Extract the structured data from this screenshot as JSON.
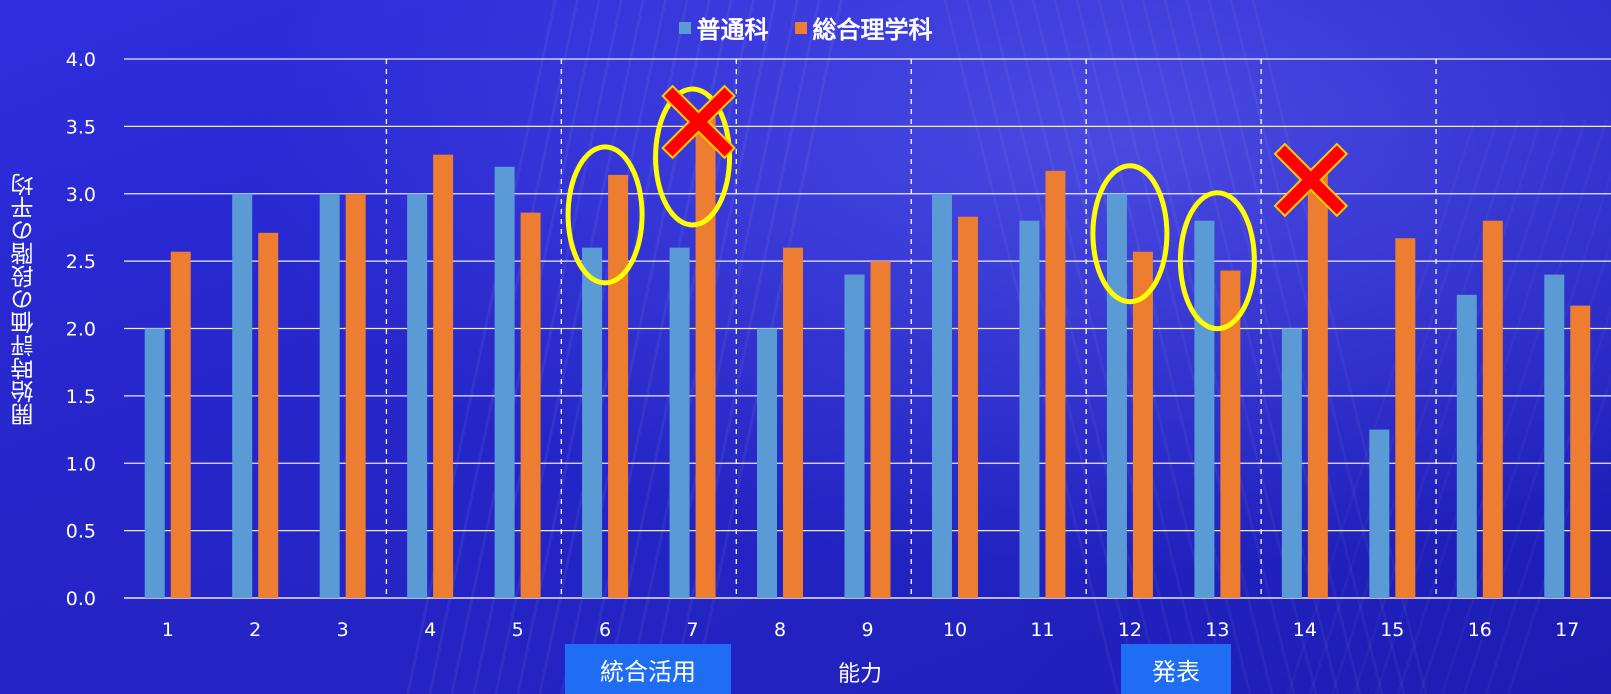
{
  "chart_data": {
    "type": "bar",
    "title": "",
    "ylabel": "開始時評価の段階の平均",
    "xlabel": "能力",
    "ylim": [
      0,
      4
    ],
    "yticks": [
      "0.0",
      "0.5",
      "1.0",
      "1.5",
      "2.0",
      "2.5",
      "3.0",
      "3.5",
      "4.0"
    ],
    "categories": [
      "1",
      "2",
      "3",
      "4",
      "5",
      "6",
      "7",
      "8",
      "9",
      "10",
      "11",
      "12",
      "13",
      "14",
      "15",
      "16",
      "17"
    ],
    "series": [
      {
        "name": "普通科",
        "color": "#5b9bd5",
        "values": [
          2.0,
          3.0,
          3.0,
          3.0,
          3.2,
          2.6,
          2.6,
          2.0,
          2.4,
          3.0,
          2.8,
          3.0,
          2.8,
          2.0,
          1.25,
          2.25,
          2.4
        ]
      },
      {
        "name": "総合理学科",
        "color": "#ed7d31",
        "values": [
          2.57,
          2.71,
          3.0,
          3.29,
          2.86,
          3.14,
          3.57,
          2.6,
          2.5,
          2.83,
          3.17,
          2.57,
          2.43,
          3.14,
          2.67,
          2.8,
          2.17
        ]
      }
    ],
    "grid": true,
    "legend": "top-center",
    "group_separators_after": [
      3,
      5,
      7,
      9,
      11,
      13,
      15
    ],
    "tags": [
      "統合活用",
      "発表"
    ],
    "circled_categories": [
      "6",
      "7",
      "12",
      "13"
    ],
    "crossed_categories": [
      "7",
      "14"
    ],
    "annotation_colors": {
      "circle": "#ffff00",
      "cross": "#ff0000"
    }
  }
}
